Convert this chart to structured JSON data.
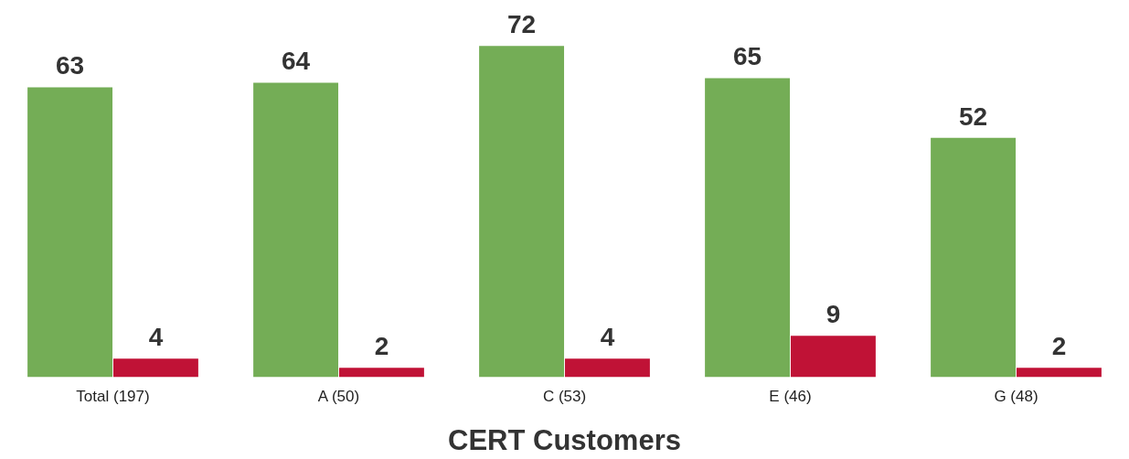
{
  "chart_data": {
    "type": "bar",
    "xlabel": "CERT Customers",
    "categories": [
      "Total (197)",
      "A (50)",
      "C (53)",
      "E (46)",
      "G (48)"
    ],
    "series": [
      {
        "color": "#74ad56",
        "values": [
          63,
          64,
          72,
          65,
          52
        ]
      },
      {
        "color": "#c01236",
        "values": [
          4,
          2,
          4,
          9,
          2
        ]
      }
    ],
    "data_labels": true,
    "legend": false,
    "grid": false
  }
}
